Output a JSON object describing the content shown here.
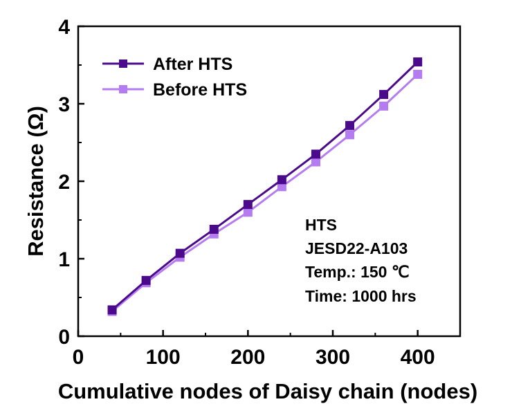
{
  "chart_data": {
    "type": "line",
    "xlabel": "Cumulative nodes of Daisy chain (nodes)",
    "ylabel": "Resistance (Ω)",
    "xlim": [
      0,
      450
    ],
    "ylim": [
      0,
      4
    ],
    "x_ticks": [
      "0",
      "100",
      "200",
      "300",
      "400"
    ],
    "y_ticks": [
      "0",
      "1",
      "2",
      "3",
      "4"
    ],
    "x": [
      40,
      80,
      120,
      160,
      200,
      240,
      280,
      320,
      360,
      400
    ],
    "series": [
      {
        "name": "After HTS",
        "color": "#4b0a8c",
        "values": [
          0.34,
          0.72,
          1.07,
          1.38,
          1.7,
          2.02,
          2.35,
          2.72,
          3.12,
          3.54
        ]
      },
      {
        "name": "Before HTS",
        "color": "#b57cf2",
        "values": [
          0.32,
          0.69,
          1.02,
          1.32,
          1.6,
          1.93,
          2.25,
          2.6,
          2.97,
          3.38
        ]
      }
    ],
    "legend_position": "top-left",
    "grid": false,
    "marker": "square",
    "annotations": [
      "HTS",
      "JESD22-A103",
      "Temp.: 150 ℃",
      "Time: 1000 hrs"
    ]
  }
}
